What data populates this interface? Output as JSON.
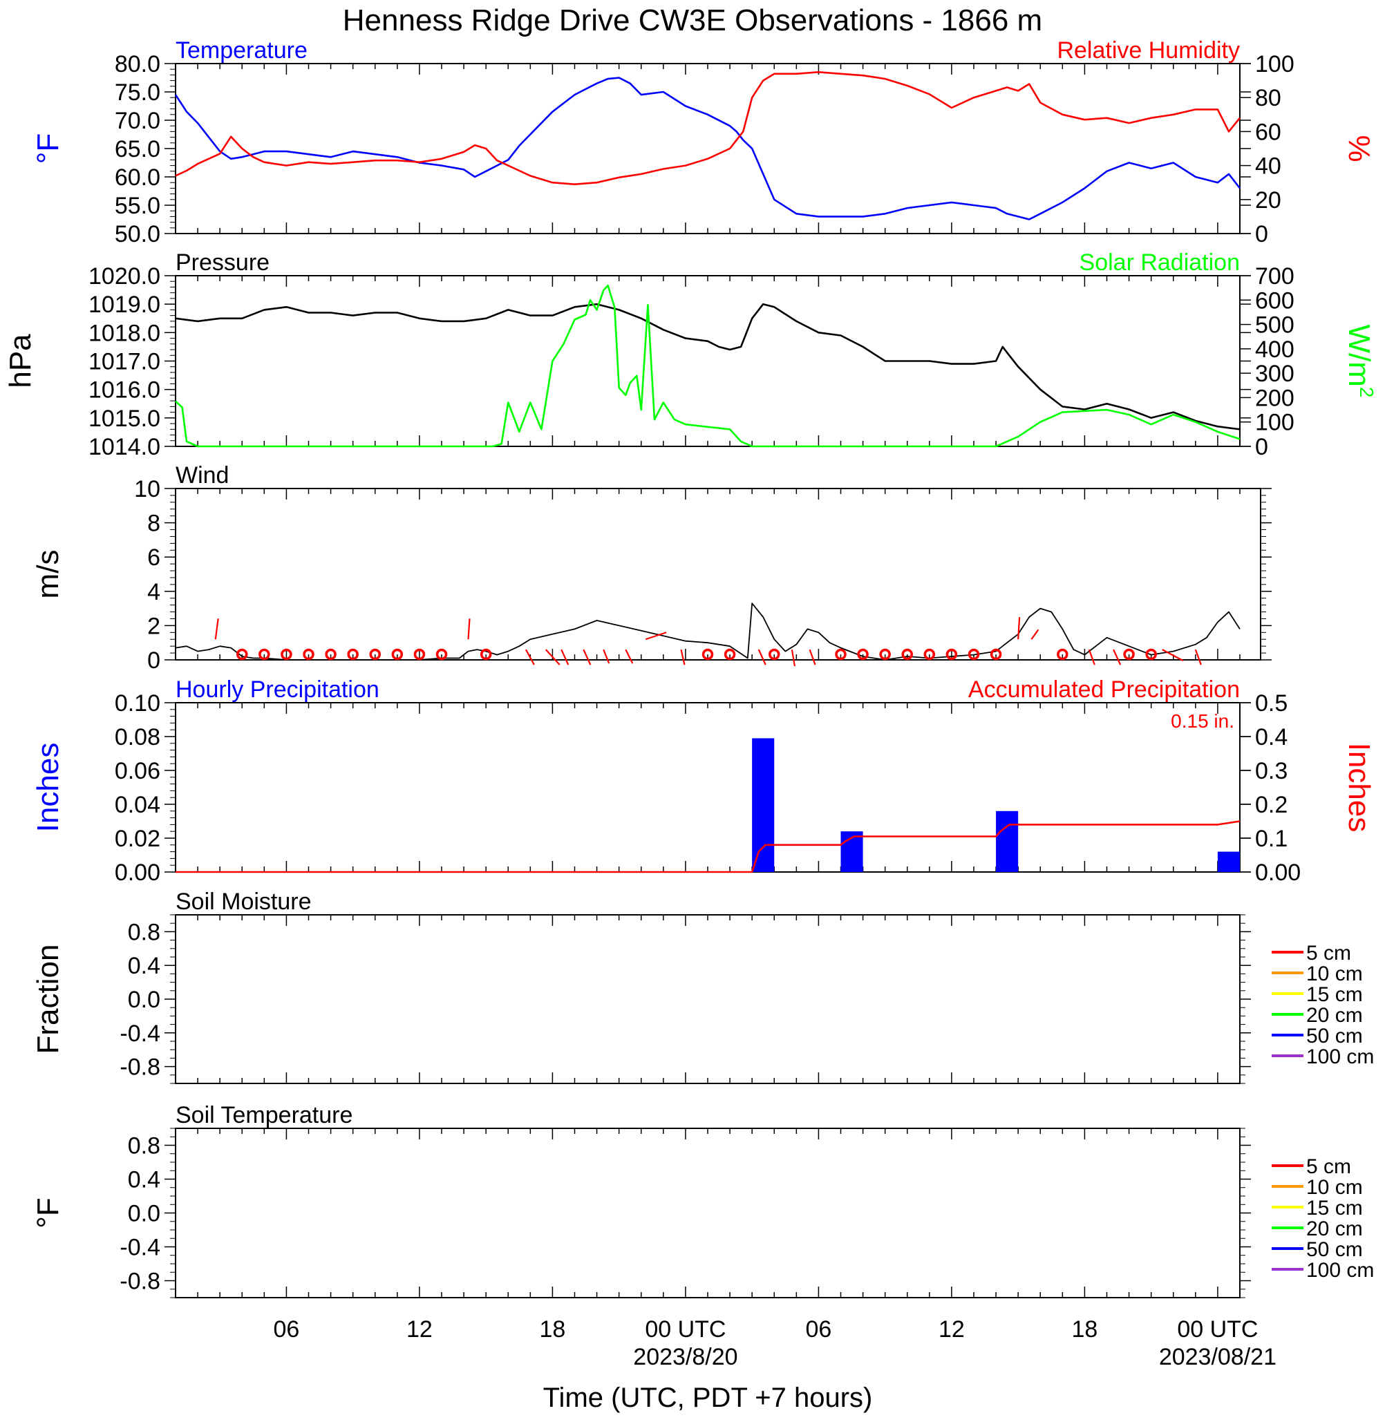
{
  "title": "Henness Ridge Drive CW3E Observations - 1866 m",
  "time_axis": {
    "xlabel": "Time (UTC, PDT +7 hours)",
    "x_range_hours": [
      0,
      48
    ],
    "tick_labels": [
      {
        "hour": 5,
        "label": "06"
      },
      {
        "hour": 11,
        "label": "12"
      },
      {
        "hour": 17,
        "label": "18"
      },
      {
        "hour": 23,
        "label": "00 UTC"
      },
      {
        "hour": 29,
        "label": "06"
      },
      {
        "hour": 35,
        "label": "12"
      },
      {
        "hour": 41,
        "label": "18"
      },
      {
        "hour": 47,
        "label": "00 UTC"
      }
    ],
    "date_labels": [
      {
        "hour": 23,
        "label": "2023/8/20"
      },
      {
        "hour": 47,
        "label": "2023/08/21"
      }
    ]
  },
  "colors": {
    "temperature": "#0000ff",
    "humidity": "#ff0000",
    "pressure": "#000000",
    "solar": "#00ff00",
    "wind": "#000000",
    "wind_barb": "#ff0000",
    "hourly_precip": "#0000ff",
    "accum_precip": "#ff0000"
  },
  "chart_data": [
    {
      "id": "temp_rh",
      "type": "line",
      "left_title": "Temperature",
      "right_title": "Relative Humidity",
      "ylabel_left": "°F",
      "ylabel_right": "%",
      "ylim_left": [
        50,
        80
      ],
      "ylim_right": [
        0,
        100
      ],
      "yticks_left": [
        "80.0",
        "75.0",
        "70.0",
        "65.0",
        "60.0",
        "55.0",
        "50.0"
      ],
      "yticks_right": [
        "100",
        "80",
        "60",
        "40",
        "20",
        "0"
      ],
      "series": [
        {
          "name": "Temperature",
          "axis": "left",
          "x": [
            0,
            0.5,
            1,
            1.5,
            2,
            2.5,
            3,
            3.5,
            4,
            5,
            6,
            7,
            8,
            9,
            10,
            11,
            12,
            13,
            13.5,
            14,
            14.5,
            15,
            15.5,
            16,
            17,
            18,
            18.5,
            19,
            19.5,
            20,
            20.5,
            21,
            22,
            23,
            24,
            25,
            25.3,
            25.6,
            26,
            27,
            28,
            29,
            30,
            31,
            32,
            33,
            34,
            35,
            36,
            37,
            37.5,
            38,
            38.5,
            39,
            40,
            41,
            42,
            43,
            44,
            45,
            46,
            47,
            47.5,
            48
          ],
          "y": [
            74.5,
            71.5,
            69.5,
            67.0,
            64.5,
            63.2,
            63.5,
            64.0,
            64.5,
            64.5,
            64.0,
            63.5,
            64.5,
            64.0,
            63.5,
            62.5,
            62.0,
            61.3,
            60.0,
            61.0,
            62.0,
            63.0,
            65.5,
            67.5,
            71.5,
            74.5,
            75.5,
            76.5,
            77.3,
            77.5,
            76.5,
            74.5,
            75.0,
            72.5,
            71.0,
            69.0,
            68.0,
            66.5,
            65.0,
            56.0,
            53.5,
            53.0,
            53.0,
            53.0,
            53.5,
            54.5,
            55.0,
            55.5,
            55.0,
            54.5,
            53.5,
            53.0,
            52.5,
            53.5,
            55.5,
            58.0,
            61.0,
            62.5,
            61.5,
            62.5,
            60.0,
            59.0,
            60.5,
            58.0
          ]
        },
        {
          "name": "Relative Humidity",
          "axis": "right",
          "x": [
            0,
            0.5,
            1,
            1.5,
            2,
            2.5,
            3,
            3.5,
            4,
            5,
            6,
            7,
            8,
            9,
            10,
            11,
            12,
            13,
            13.5,
            14,
            14.5,
            15,
            15.5,
            16,
            17,
            18,
            19,
            20,
            21,
            22,
            23,
            24,
            25,
            25.3,
            25.6,
            26,
            26.5,
            27,
            28,
            29,
            30,
            31,
            32,
            33,
            34,
            35,
            36,
            37,
            37.5,
            38,
            38.5,
            39,
            40,
            41,
            42,
            43,
            44,
            45,
            46,
            47,
            47.5,
            48
          ],
          "y": [
            34,
            37,
            41,
            44,
            47,
            57,
            50,
            45,
            42,
            40,
            42,
            41,
            42,
            43,
            43,
            42,
            44,
            48,
            52,
            50,
            43,
            40,
            37,
            34,
            30,
            29,
            30,
            33,
            35,
            38,
            40,
            44,
            50,
            55,
            60,
            80,
            90,
            94,
            94,
            95,
            94,
            93,
            91,
            87,
            82,
            74,
            80,
            84,
            86,
            84,
            88,
            77,
            70,
            67,
            68,
            65,
            68,
            70,
            73,
            73,
            60,
            68
          ]
        }
      ]
    },
    {
      "id": "pressure_solar",
      "type": "line",
      "left_title": "Pressure",
      "right_title": "Solar Radiation",
      "ylabel_left": "hPa",
      "ylabel_right": "W/m",
      "ylabel_right_sup": "2",
      "ylim_left": [
        1014,
        1020
      ],
      "ylim_right": [
        0,
        700
      ],
      "yticks_left": [
        "1020.0",
        "1019.0",
        "1018.0",
        "1017.0",
        "1016.0",
        "1015.0",
        "1014.0"
      ],
      "yticks_right": [
        "700",
        "600",
        "500",
        "400",
        "300",
        "200",
        "100",
        "0"
      ],
      "series": [
        {
          "name": "Pressure",
          "axis": "left",
          "x": [
            0,
            1,
            2,
            3,
            4,
            5,
            6,
            7,
            8,
            9,
            10,
            11,
            12,
            13,
            14,
            15,
            16,
            17,
            18,
            19,
            20,
            21,
            22,
            23,
            24,
            24.5,
            25,
            25.5,
            26,
            26.5,
            27,
            28,
            29,
            30,
            31,
            32,
            33,
            34,
            35,
            36,
            37,
            37.3,
            37.6,
            38,
            39,
            40,
            41,
            42,
            43,
            44,
            45,
            46,
            47,
            48
          ],
          "y": [
            1018.5,
            1018.4,
            1018.5,
            1018.5,
            1018.8,
            1018.9,
            1018.7,
            1018.7,
            1018.6,
            1018.7,
            1018.7,
            1018.5,
            1018.4,
            1018.4,
            1018.5,
            1018.8,
            1018.6,
            1018.6,
            1018.9,
            1019.0,
            1018.8,
            1018.5,
            1018.1,
            1017.8,
            1017.7,
            1017.5,
            1017.4,
            1017.5,
            1018.5,
            1019.0,
            1018.9,
            1018.4,
            1018.0,
            1017.9,
            1017.5,
            1017.0,
            1017.0,
            1017.0,
            1016.9,
            1016.9,
            1017.0,
            1017.5,
            1017.2,
            1016.8,
            1016.0,
            1015.4,
            1015.3,
            1015.5,
            1015.3,
            1015.0,
            1015.2,
            1014.9,
            1014.7,
            1014.6
          ]
        },
        {
          "name": "Solar Radiation",
          "axis": "right",
          "x": [
            0,
            0.3,
            0.5,
            1,
            2,
            5,
            10,
            13,
            14.3,
            14.7,
            15,
            15.5,
            16,
            16.5,
            17,
            17.5,
            18,
            18.5,
            18.7,
            19,
            19.3,
            19.5,
            19.8,
            20,
            20.3,
            20.5,
            20.8,
            21,
            21.3,
            21.6,
            22,
            22.5,
            23,
            24,
            25,
            25.5,
            26,
            30,
            35,
            37,
            38,
            39,
            40,
            41,
            42,
            43,
            44,
            45,
            46,
            47,
            48
          ],
          "y": [
            185,
            160,
            20,
            0,
            0,
            0,
            0,
            0,
            0,
            10,
            180,
            60,
            180,
            70,
            350,
            420,
            520,
            540,
            600,
            560,
            640,
            660,
            570,
            240,
            210,
            260,
            290,
            150,
            580,
            110,
            180,
            110,
            90,
            80,
            70,
            20,
            0,
            0,
            0,
            0,
            40,
            100,
            140,
            145,
            150,
            130,
            90,
            130,
            100,
            60,
            30
          ]
        }
      ]
    },
    {
      "id": "wind",
      "type": "line",
      "left_title": "Wind",
      "ylabel_left": "m/s",
      "ylim_left": [
        0,
        10
      ],
      "yticks_left": [
        "10",
        "8",
        "6",
        "4",
        "2",
        "0"
      ],
      "series": [
        {
          "name": "Wind",
          "axis": "left",
          "x": [
            0,
            0.5,
            1,
            1.5,
            2,
            2.5,
            3,
            3.5,
            4,
            5,
            6,
            7,
            8,
            9,
            10,
            11,
            12,
            12.8,
            13.2,
            13.6,
            14,
            14.5,
            15,
            15.5,
            16,
            17,
            18,
            19,
            20,
            21,
            22,
            23,
            24,
            25,
            25.8,
            26,
            26.5,
            27,
            27.5,
            28,
            28.5,
            29,
            29.5,
            30,
            31,
            32,
            33,
            34,
            35,
            36,
            37,
            37.5,
            38,
            38.5,
            39,
            39.5,
            40,
            40.5,
            41,
            41.5,
            42,
            43,
            44,
            45,
            46,
            46.5,
            47,
            47.5,
            48
          ],
          "y": [
            0.7,
            0.8,
            0.5,
            0.6,
            0.8,
            0.7,
            0.2,
            0.1,
            0.1,
            0,
            0,
            0,
            0,
            0,
            0,
            0,
            0.1,
            0.1,
            0.5,
            0.6,
            0.5,
            0.3,
            0.5,
            0.8,
            1.2,
            1.5,
            1.8,
            2.3,
            2.0,
            1.7,
            1.4,
            1.1,
            1.0,
            0.8,
            0.1,
            3.3,
            2.5,
            1.2,
            0.5,
            0.9,
            1.8,
            1.6,
            1.0,
            0.7,
            0.2,
            0,
            0.2,
            0.1,
            0.2,
            0.3,
            0.5,
            1.0,
            1.5,
            2.5,
            3.0,
            2.8,
            1.8,
            0.6,
            0.3,
            0.8,
            1.3,
            0.8,
            0.3,
            0.5,
            0.9,
            1.3,
            2.2,
            2.8,
            1.8
          ]
        }
      ],
      "calm_hours": [
        3,
        4,
        5,
        6,
        7,
        8,
        9,
        10,
        11,
        12,
        14,
        24,
        25,
        27,
        30,
        31,
        32,
        33,
        34,
        35,
        36,
        37,
        40,
        43,
        44
      ],
      "barbs": [
        {
          "hour": 1.8,
          "dx": 4,
          "dy": -30
        },
        {
          "hour": 13.2,
          "dx": 2,
          "dy": -30
        },
        {
          "hour": 15.8,
          "dx": 12,
          "dy": 22
        },
        {
          "hour": 16.7,
          "dx": 20,
          "dy": 22
        },
        {
          "hour": 17.4,
          "dx": 10,
          "dy": 22
        },
        {
          "hour": 18.4,
          "dx": 10,
          "dy": 22
        },
        {
          "hour": 19.3,
          "dx": 8,
          "dy": 20
        },
        {
          "hour": 20.3,
          "dx": 10,
          "dy": 20
        },
        {
          "hour": 21.2,
          "dx": 30,
          "dy": -10
        },
        {
          "hour": 22.8,
          "dx": 5,
          "dy": 22
        },
        {
          "hour": 26.3,
          "dx": 10,
          "dy": 22
        },
        {
          "hour": 27.8,
          "dx": 4,
          "dy": 24
        },
        {
          "hour": 28.6,
          "dx": 8,
          "dy": 22
        },
        {
          "hour": 38.0,
          "dx": 2,
          "dy": -32
        },
        {
          "hour": 38.6,
          "dx": 10,
          "dy": -14
        },
        {
          "hour": 41.2,
          "dx": 8,
          "dy": 22
        },
        {
          "hour": 42.3,
          "dx": 10,
          "dy": 22
        },
        {
          "hour": 44.5,
          "dx": 30,
          "dy": 16
        },
        {
          "hour": 46.0,
          "dx": 8,
          "dy": 22
        }
      ]
    },
    {
      "id": "precip",
      "type": "bar",
      "left_title": "Hourly Precipitation",
      "right_title": "Accumulated Precipitation",
      "annotation": "0.15 in.",
      "ylabel_left": "Inches",
      "ylabel_right": "Inches",
      "ylim_left": [
        0,
        0.1
      ],
      "ylim_right": [
        0,
        0.5
      ],
      "yticks_left": [
        "0.10",
        "0.08",
        "0.06",
        "0.04",
        "0.02",
        "0.00"
      ],
      "yticks_right": [
        "0.5",
        "0.4",
        "0.3",
        "0.2",
        "0.1",
        "0.00"
      ],
      "bars": [
        {
          "hour": 26,
          "value": 0.079
        },
        {
          "hour": 30,
          "value": 0.024
        },
        {
          "hour": 37,
          "value": 0.036
        },
        {
          "hour": 47,
          "value": 0.012
        }
      ],
      "series": [
        {
          "name": "Accumulated Precipitation",
          "axis": "right",
          "x": [
            0,
            26,
            26.3,
            26.6,
            30,
            30.2,
            30.6,
            37,
            37.2,
            37.6,
            47,
            47.5,
            48
          ],
          "y": [
            0,
            0,
            0.06,
            0.08,
            0.08,
            0.09,
            0.105,
            0.105,
            0.12,
            0.14,
            0.14,
            0.145,
            0.15
          ]
        }
      ]
    },
    {
      "id": "soil_moisture",
      "type": "line",
      "left_title": "Soil Moisture",
      "ylabel_left": "Fraction",
      "ylim_left": [
        -1,
        1
      ],
      "yticks_left": [
        "0.8",
        "0.4",
        "0.0",
        "-0.4",
        "-0.8"
      ],
      "legend": [
        "5 cm",
        "10 cm",
        "15 cm",
        "20 cm",
        "50 cm",
        "100 cm"
      ],
      "legend_colors": [
        "#ff0000",
        "#ff9900",
        "#ffff00",
        "#00ff00",
        "#0000ff",
        "#9933cc"
      ],
      "series": []
    },
    {
      "id": "soil_temperature",
      "type": "line",
      "left_title": "Soil Temperature",
      "ylabel_left": "°F",
      "ylim_left": [
        -1,
        1
      ],
      "yticks_left": [
        "0.8",
        "0.4",
        "0.0",
        "-0.4",
        "-0.8"
      ],
      "legend": [
        "5 cm",
        "10 cm",
        "15 cm",
        "20 cm",
        "50 cm",
        "100 cm"
      ],
      "legend_colors": [
        "#ff0000",
        "#ff9900",
        "#ffff00",
        "#00ff00",
        "#0000ff",
        "#9933cc"
      ],
      "series": []
    }
  ]
}
